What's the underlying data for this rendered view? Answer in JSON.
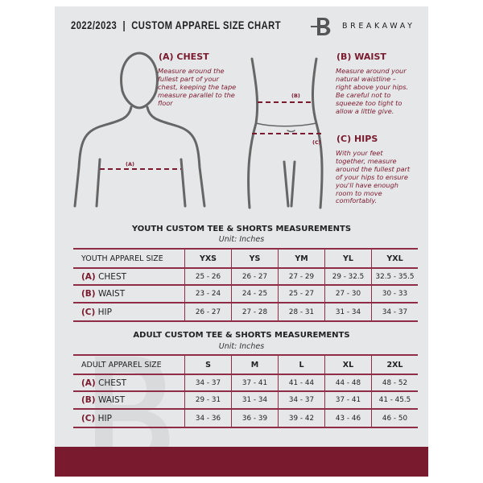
{
  "header": {
    "title": "2022/2023  |  CUSTOM APPAREL SIZE CHART",
    "brand": "BREAKAWAY",
    "logo_letter": "B"
  },
  "guides": {
    "chest": {
      "heading": "(A) CHEST",
      "text": "Measure around the fullest part of your chest, keeping the tape measure parallel to the floor",
      "tag": "(A)"
    },
    "waist": {
      "heading": "(B) WAIST",
      "text": "Measure around your natural waistline – right above your hips. Be careful not to squeeze too tight to allow a little give.",
      "tag": "(B)"
    },
    "hips": {
      "heading": "(C) HIPS",
      "text": "With your feet together, measure around the fullest part of your hips to ensure you'll have enough room to move comfortably.",
      "tag": "(C)"
    }
  },
  "accent": "#7a1a2e",
  "youth": {
    "title": "YOUTH CUSTOM TEE & SHORTS MEASUREMENTS",
    "unit": "Unit: Inches",
    "header": "YOUTH APPAREL SIZE",
    "sizes": [
      "YXS",
      "YS",
      "YM",
      "YL",
      "YXL"
    ],
    "rows": [
      {
        "key": "(A)",
        "label": "CHEST",
        "values": [
          "25 - 26",
          "26 - 27",
          "27 - 29",
          "29 - 32.5",
          "32.5 - 35.5"
        ]
      },
      {
        "key": "(B)",
        "label": "WAIST",
        "values": [
          "23 - 24",
          "24 - 25",
          "25 - 27",
          "27 - 30",
          "30 - 33"
        ]
      },
      {
        "key": "(C)",
        "label": "HIP",
        "values": [
          "26 - 27",
          "27 - 28",
          "28 - 31",
          "31 - 34",
          "34 - 37"
        ]
      }
    ]
  },
  "adult": {
    "title": "ADULT CUSTOM TEE & SHORTS MEASUREMENTS",
    "unit": "Unit: Inches",
    "header": "ADULT APPAREL SIZE",
    "sizes": [
      "S",
      "M",
      "L",
      "XL",
      "2XL"
    ],
    "rows": [
      {
        "key": "(A)",
        "label": "CHEST",
        "values": [
          "34 - 37",
          "37 - 41",
          "41 - 44",
          "44 - 48",
          "48 - 52"
        ]
      },
      {
        "key": "(B)",
        "label": "WAIST",
        "values": [
          "29 - 31",
          "31 - 34",
          "34 - 37",
          "37 - 41",
          "41 - 45.5"
        ]
      },
      {
        "key": "(C)",
        "label": "HIP",
        "values": [
          "34 - 36",
          "36 - 39",
          "39 - 42",
          "43 - 46",
          "46 - 50"
        ]
      }
    ]
  }
}
